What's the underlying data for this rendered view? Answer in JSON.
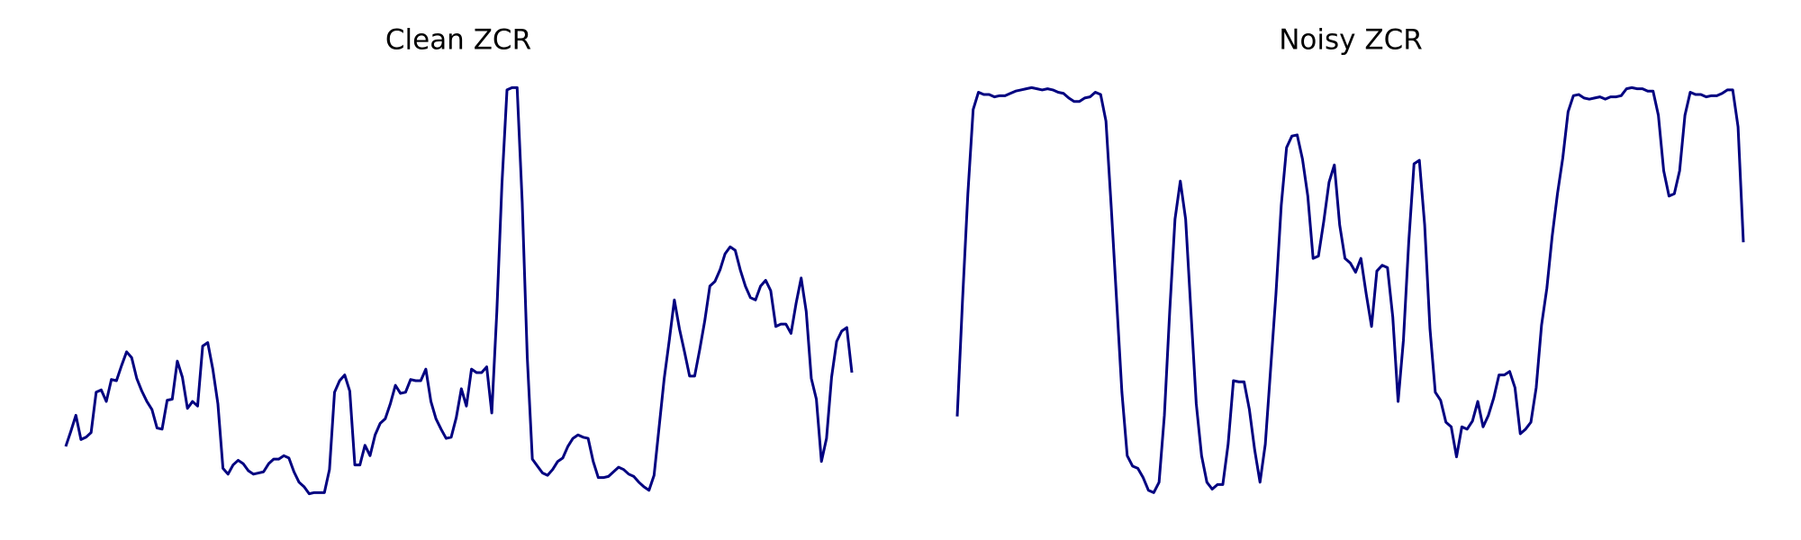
{
  "chart_data": [
    {
      "type": "line",
      "title": "Clean ZCR",
      "color": "#000080",
      "values": [
        53,
        66,
        80,
        59,
        61,
        65,
        100,
        102,
        92,
        111,
        110,
        123,
        135,
        130,
        112,
        101,
        92,
        85,
        69,
        68,
        93,
        94,
        127,
        113,
        86,
        92,
        88,
        140,
        143,
        120,
        90,
        34,
        29,
        37,
        41,
        38,
        32,
        29,
        30,
        31,
        38,
        42,
        42,
        45,
        43,
        31,
        22,
        18,
        12,
        13,
        13,
        13,
        33,
        100,
        110,
        115,
        101,
        37,
        37,
        54,
        45,
        63,
        73,
        77,
        90,
        106,
        99,
        100,
        111,
        110,
        110,
        120,
        92,
        77,
        68,
        60,
        61,
        78,
        103,
        88,
        120,
        117,
        117,
        122,
        82,
        170,
        280,
        362,
        364,
        364,
        265,
        130,
        42,
        36,
        30,
        28,
        33,
        40,
        43,
        53,
        60,
        63,
        61,
        60,
        40,
        26,
        26,
        27,
        31,
        35,
        33,
        29,
        27,
        22,
        18,
        15,
        28,
        70,
        112,
        145,
        180,
        155,
        135,
        114,
        114,
        137,
        162,
        192,
        196,
        206,
        220,
        226,
        223,
        206,
        192,
        182,
        180,
        192,
        197,
        188,
        157,
        159,
        159,
        151,
        177,
        199,
        170,
        112,
        94,
        40,
        60,
        113,
        144,
        153,
        156,
        117
      ]
    },
    {
      "type": "line",
      "title": "Noisy ZCR",
      "color": "#000080",
      "values": [
        79,
        180,
        272,
        345,
        360,
        358,
        358,
        356,
        357,
        357,
        359,
        361,
        362,
        363,
        364,
        363,
        362,
        363,
        362,
        360,
        359,
        355,
        352,
        352,
        355,
        356,
        360,
        358,
        335,
        260,
        180,
        100,
        45,
        36,
        34,
        26,
        15,
        13,
        22,
        80,
        170,
        250,
        283,
        250,
        170,
        90,
        45,
        22,
        16,
        20,
        20,
        55,
        110,
        109,
        109,
        85,
        50,
        22,
        55,
        120,
        185,
        262,
        312,
        322,
        323,
        302,
        270,
        216,
        218,
        248,
        282,
        297,
        245,
        216,
        212,
        204,
        216,
        185,
        157,
        205,
        210,
        208,
        165,
        92,
        145,
        230,
        298,
        301,
        245,
        155,
        100,
        93,
        74,
        70,
        44,
        70,
        68,
        75,
        92,
        70,
        80,
        95,
        115,
        115,
        118,
        104,
        64,
        68,
        74,
        104,
        158,
        190,
        235,
        272,
        303,
        343,
        357,
        358,
        355,
        354,
        355,
        356,
        354,
        356,
        356,
        357,
        363,
        364,
        363,
        363,
        361,
        361,
        340,
        292,
        270,
        272,
        292,
        340,
        360,
        358,
        358,
        356,
        357,
        357,
        359,
        362,
        362,
        330,
        230
      ]
    }
  ]
}
